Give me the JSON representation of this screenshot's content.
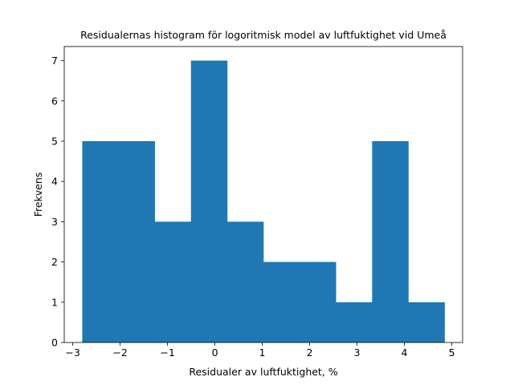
{
  "chart_data": {
    "type": "bar",
    "title": "Residualernas histogram för logoritmisk model av luftfuktighet vid Umeå",
    "xlabel": "Residualer av luftfuktighet, %",
    "ylabel": "Frekvens",
    "bin_edges": [
      -2.8,
      -2.035,
      -1.27,
      -0.505,
      0.26,
      1.025,
      1.79,
      2.555,
      3.32,
      4.085,
      4.85
    ],
    "values": [
      5,
      5,
      3,
      7,
      3,
      2,
      2,
      1,
      5,
      1
    ],
    "xlim": [
      -3.18,
      5.23
    ],
    "ylim": [
      0,
      7.35
    ],
    "xticks": [
      -3,
      -2,
      -1,
      0,
      1,
      2,
      3,
      4,
      5
    ],
    "xtick_labels": [
      "−3",
      "−2",
      "−1",
      "0",
      "1",
      "2",
      "3",
      "4",
      "5"
    ],
    "yticks": [
      0,
      1,
      2,
      3,
      4,
      5,
      6,
      7
    ],
    "ytick_labels": [
      "0",
      "1",
      "2",
      "3",
      "4",
      "5",
      "6",
      "7"
    ],
    "bar_color": "#1f77b4",
    "grid": false,
    "legend": false
  }
}
